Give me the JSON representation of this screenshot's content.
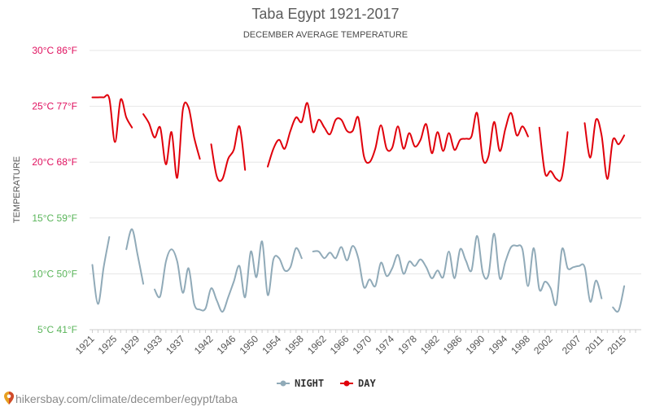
{
  "chart_data": {
    "type": "line",
    "title": "Taba Egypt 1921-2017",
    "subtitle": "DECEMBER AVERAGE TEMPERATURE",
    "ylabel": "TEMPERATURE",
    "ylim": [
      5,
      30
    ],
    "xlim": [
      1920.5,
      2018
    ],
    "yticks": [
      {
        "value": 30,
        "label": "30°C 86°F",
        "color": "#e0115f"
      },
      {
        "value": 25,
        "label": "25°C 77°F",
        "color": "#e0115f"
      },
      {
        "value": 20,
        "label": "20°C 68°F",
        "color": "#e0115f"
      },
      {
        "value": 15,
        "label": "15°C 59°F",
        "color": "#5ab55a"
      },
      {
        "value": 10,
        "label": "10°C 50°F",
        "color": "#5ab55a"
      },
      {
        "value": 5,
        "label": "5°C 41°F",
        "color": "#5ab55a"
      }
    ],
    "xticks": [
      "1921",
      "1925",
      "1929",
      "1933",
      "1937",
      "1942",
      "1946",
      "1950",
      "1954",
      "1958",
      "1962",
      "1966",
      "1970",
      "1974",
      "1978",
      "1982",
      "1986",
      "1990",
      "1994",
      "1998",
      "2002",
      "2007",
      "2011",
      "2015"
    ],
    "legend": [
      {
        "name": "NIGHT",
        "color": "#90aab8"
      },
      {
        "name": "DAY",
        "color": "#e0000b"
      }
    ],
    "legend_position": "bottom-center",
    "grid": true,
    "series": [
      {
        "name": "DAY",
        "color": "#e0000b",
        "points": [
          [
            1921,
            25.8
          ],
          [
            1922,
            25.8
          ],
          [
            1923,
            25.8
          ],
          [
            1924,
            25.7
          ],
          [
            1925,
            21.8
          ],
          [
            1926,
            25.6
          ],
          [
            1927,
            24.0
          ],
          [
            1928,
            23.1
          ],
          [
            1929,
            null
          ],
          [
            1930,
            24.3
          ],
          [
            1931,
            23.5
          ],
          [
            1932,
            22.2
          ],
          [
            1933,
            23.1
          ],
          [
            1934,
            19.8
          ],
          [
            1935,
            22.7
          ],
          [
            1936,
            18.6
          ],
          [
            1937,
            24.7
          ],
          [
            1938,
            24.9
          ],
          [
            1939,
            22.2
          ],
          [
            1940,
            20.3
          ],
          [
            1941,
            null
          ],
          [
            1942,
            21.6
          ],
          [
            1943,
            18.7
          ],
          [
            1944,
            18.5
          ],
          [
            1945,
            20.3
          ],
          [
            1946,
            21.1
          ],
          [
            1947,
            23.2
          ],
          [
            1948,
            19.3
          ],
          [
            1949,
            null
          ],
          [
            1952,
            19.6
          ],
          [
            1953,
            21.2
          ],
          [
            1954,
            22.0
          ],
          [
            1955,
            21.2
          ],
          [
            1956,
            22.8
          ],
          [
            1957,
            24.0
          ],
          [
            1958,
            23.6
          ],
          [
            1959,
            25.3
          ],
          [
            1960,
            22.7
          ],
          [
            1961,
            23.8
          ],
          [
            1962,
            23.1
          ],
          [
            1963,
            22.5
          ],
          [
            1964,
            23.8
          ],
          [
            1965,
            23.8
          ],
          [
            1966,
            22.8
          ],
          [
            1967,
            22.8
          ],
          [
            1968,
            24.0
          ],
          [
            1969,
            20.5
          ],
          [
            1970,
            20.0
          ],
          [
            1971,
            21.2
          ],
          [
            1972,
            23.3
          ],
          [
            1973,
            21.2
          ],
          [
            1974,
            21.3
          ],
          [
            1975,
            23.2
          ],
          [
            1976,
            21.2
          ],
          [
            1977,
            22.6
          ],
          [
            1978,
            21.4
          ],
          [
            1979,
            22.0
          ],
          [
            1980,
            23.4
          ],
          [
            1981,
            20.8
          ],
          [
            1982,
            22.7
          ],
          [
            1983,
            21.0
          ],
          [
            1984,
            22.6
          ],
          [
            1985,
            21.1
          ],
          [
            1986,
            22.0
          ],
          [
            1987,
            22.1
          ],
          [
            1988,
            22.3
          ],
          [
            1989,
            24.4
          ],
          [
            1990,
            20.3
          ],
          [
            1991,
            20.5
          ],
          [
            1992,
            23.6
          ],
          [
            1993,
            21.0
          ],
          [
            1994,
            23.0
          ],
          [
            1995,
            24.4
          ],
          [
            1996,
            22.4
          ],
          [
            1997,
            23.2
          ],
          [
            1998,
            22.3
          ],
          [
            1999,
            null
          ],
          [
            2000,
            23.1
          ],
          [
            2001,
            19.0
          ],
          [
            2002,
            19.2
          ],
          [
            2003,
            18.5
          ],
          [
            2004,
            18.7
          ],
          [
            2005,
            22.7
          ],
          [
            2006,
            null
          ],
          [
            2008,
            23.5
          ],
          [
            2009,
            20.4
          ],
          [
            2010,
            23.8
          ],
          [
            2011,
            22.4
          ],
          [
            2012,
            18.5
          ],
          [
            2013,
            22.0
          ],
          [
            2014,
            21.6
          ],
          [
            2015,
            22.4
          ]
        ]
      },
      {
        "name": "NIGHT",
        "color": "#90aab8",
        "points": [
          [
            1921,
            10.8
          ],
          [
            1922,
            7.3
          ],
          [
            1923,
            10.6
          ],
          [
            1924,
            13.3
          ],
          [
            1925,
            null
          ],
          [
            1927,
            12.2
          ],
          [
            1928,
            14.0
          ],
          [
            1929,
            11.7
          ],
          [
            1930,
            9.1
          ],
          [
            1931,
            null
          ],
          [
            1932,
            8.6
          ],
          [
            1933,
            8.0
          ],
          [
            1934,
            11.1
          ],
          [
            1935,
            12.2
          ],
          [
            1936,
            11.1
          ],
          [
            1937,
            8.3
          ],
          [
            1938,
            10.5
          ],
          [
            1939,
            7.3
          ],
          [
            1940,
            6.8
          ],
          [
            1941,
            6.9
          ],
          [
            1942,
            8.7
          ],
          [
            1943,
            7.6
          ],
          [
            1944,
            6.6
          ],
          [
            1945,
            7.9
          ],
          [
            1946,
            9.3
          ],
          [
            1947,
            10.7
          ],
          [
            1948,
            7.9
          ],
          [
            1949,
            12.0
          ],
          [
            1950,
            9.7
          ],
          [
            1951,
            12.9
          ],
          [
            1952,
            8.1
          ],
          [
            1953,
            11.3
          ],
          [
            1954,
            11.4
          ],
          [
            1955,
            10.3
          ],
          [
            1956,
            10.6
          ],
          [
            1957,
            12.3
          ],
          [
            1958,
            11.4
          ],
          [
            1959,
            null
          ],
          [
            1960,
            12.0
          ],
          [
            1961,
            12.0
          ],
          [
            1962,
            11.4
          ],
          [
            1963,
            11.9
          ],
          [
            1964,
            11.4
          ],
          [
            1965,
            12.4
          ],
          [
            1966,
            11.2
          ],
          [
            1967,
            12.5
          ],
          [
            1968,
            11.4
          ],
          [
            1969,
            8.8
          ],
          [
            1970,
            9.5
          ],
          [
            1971,
            8.9
          ],
          [
            1972,
            11.0
          ],
          [
            1973,
            9.8
          ],
          [
            1974,
            10.5
          ],
          [
            1975,
            11.7
          ],
          [
            1976,
            10.0
          ],
          [
            1977,
            11.1
          ],
          [
            1978,
            10.7
          ],
          [
            1979,
            11.3
          ],
          [
            1980,
            10.6
          ],
          [
            1981,
            9.6
          ],
          [
            1982,
            10.3
          ],
          [
            1983,
            9.7
          ],
          [
            1984,
            12.0
          ],
          [
            1985,
            9.6
          ],
          [
            1986,
            12.2
          ],
          [
            1987,
            11.2
          ],
          [
            1988,
            10.3
          ],
          [
            1989,
            13.4
          ],
          [
            1990,
            10.1
          ],
          [
            1991,
            9.9
          ],
          [
            1992,
            13.6
          ],
          [
            1993,
            9.6
          ],
          [
            1994,
            11.1
          ],
          [
            1995,
            12.4
          ],
          [
            1996,
            12.5
          ],
          [
            1997,
            12.2
          ],
          [
            1998,
            8.9
          ],
          [
            1999,
            12.3
          ],
          [
            2000,
            8.6
          ],
          [
            2001,
            9.3
          ],
          [
            2002,
            8.7
          ],
          [
            2003,
            7.3
          ],
          [
            2004,
            12.2
          ],
          [
            2005,
            10.5
          ],
          [
            2006,
            10.6
          ],
          [
            2007,
            10.7
          ],
          [
            2008,
            10.6
          ],
          [
            2009,
            7.5
          ],
          [
            2010,
            9.4
          ],
          [
            2011,
            7.8
          ],
          [
            2012,
            null
          ],
          [
            2013,
            7.0
          ],
          [
            2014,
            6.7
          ],
          [
            2015,
            8.9
          ]
        ]
      }
    ]
  },
  "source": {
    "text": "hikersbay.com/climate/december/egypt/taba",
    "pin_icon": "map-pin-icon"
  }
}
